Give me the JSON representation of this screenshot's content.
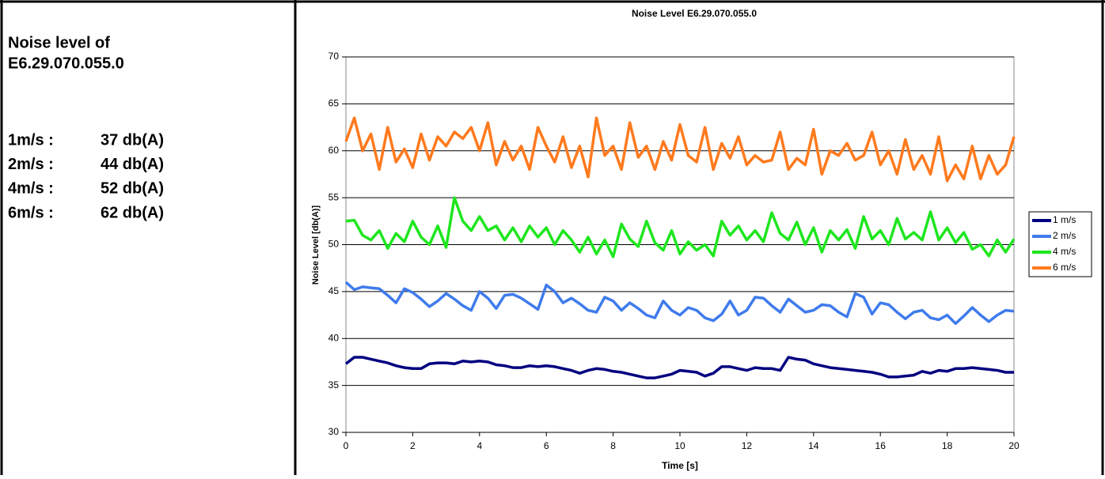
{
  "left_panel": {
    "title_lines": [
      "Noise level of",
      "E6.29.070.055.0"
    ],
    "rows": [
      {
        "speed": "1m/s :",
        "level": "37 db(A)"
      },
      {
        "speed": "2m/s :",
        "level": "44 db(A)"
      },
      {
        "speed": "4m/s :",
        "level": "52 db(A)"
      },
      {
        "speed": "6m/s :",
        "level": "62 db(A)"
      }
    ]
  },
  "chart_data": {
    "type": "line",
    "title": "Noise Level E6.29.070.055.0",
    "x_label": "Time [s]",
    "y_label": "Noise Level [db(A)]",
    "xlim": [
      0,
      20
    ],
    "xticks": [
      0,
      2,
      4,
      6,
      8,
      10,
      12,
      14,
      16,
      18,
      20
    ],
    "ylim": [
      30,
      70
    ],
    "yticks": [
      30,
      35,
      40,
      45,
      50,
      55,
      60,
      65,
      70
    ],
    "grid": true,
    "legend": "right",
    "x": [
      0,
      0.25,
      0.5,
      0.75,
      1,
      1.25,
      1.5,
      1.75,
      2,
      2.25,
      2.5,
      2.75,
      3,
      3.25,
      3.5,
      3.75,
      4,
      4.25,
      4.5,
      4.75,
      5,
      5.25,
      5.5,
      5.75,
      6,
      6.25,
      6.5,
      6.75,
      7,
      7.25,
      7.5,
      7.75,
      8,
      8.25,
      8.5,
      8.75,
      9,
      9.25,
      9.5,
      9.75,
      10,
      10.25,
      10.5,
      10.75,
      11,
      11.25,
      11.5,
      11.75,
      12,
      12.25,
      12.5,
      12.75,
      13,
      13.25,
      13.5,
      13.75,
      14,
      14.25,
      14.5,
      14.75,
      15,
      15.25,
      15.5,
      15.75,
      16,
      16.25,
      16.5,
      16.75,
      17,
      17.25,
      17.5,
      17.75,
      18,
      18.25,
      18.5,
      18.75,
      19,
      19.25,
      19.5,
      19.75,
      20
    ],
    "series": [
      {
        "name": "1 m/s",
        "color": "#000080",
        "values": [
          37.3,
          38.0,
          38.0,
          37.8,
          37.6,
          37.4,
          37.1,
          36.9,
          36.8,
          36.8,
          37.3,
          37.4,
          37.4,
          37.3,
          37.6,
          37.5,
          37.6,
          37.5,
          37.2,
          37.1,
          36.9,
          36.9,
          37.1,
          37.0,
          37.1,
          37.0,
          36.8,
          36.6,
          36.3,
          36.6,
          36.8,
          36.7,
          36.5,
          36.4,
          36.2,
          36.0,
          35.8,
          35.8,
          36.0,
          36.2,
          36.6,
          36.5,
          36.4,
          36.0,
          36.3,
          37.0,
          37.0,
          36.8,
          36.6,
          36.9,
          36.8,
          36.8,
          36.6,
          38.0,
          37.8,
          37.7,
          37.3,
          37.1,
          36.9,
          36.8,
          36.7,
          36.6,
          36.5,
          36.4,
          36.2,
          35.9,
          35.9,
          36.0,
          36.1,
          36.5,
          36.3,
          36.6,
          36.5,
          36.8,
          36.8,
          36.9,
          36.8,
          36.7,
          36.6,
          36.4,
          36.4
        ]
      },
      {
        "name": "2 m/s",
        "color": "#3f7bec",
        "values": [
          46.0,
          45.2,
          45.5,
          45.4,
          45.3,
          44.6,
          43.8,
          45.3,
          44.9,
          44.2,
          43.4,
          44.0,
          44.8,
          44.2,
          43.5,
          43.0,
          45.0,
          44.3,
          43.2,
          44.6,
          44.7,
          44.3,
          43.7,
          43.1,
          45.7,
          45.0,
          43.8,
          44.3,
          43.7,
          43.0,
          42.8,
          44.4,
          44.0,
          43.0,
          43.8,
          43.2,
          42.5,
          42.2,
          44.0,
          43.0,
          42.5,
          43.3,
          43.0,
          42.2,
          41.9,
          42.6,
          44.0,
          42.5,
          43.0,
          44.4,
          44.3,
          43.5,
          42.8,
          44.2,
          43.5,
          42.8,
          43.0,
          43.6,
          43.5,
          42.8,
          42.3,
          44.8,
          44.4,
          42.6,
          43.8,
          43.6,
          42.8,
          42.1,
          42.8,
          43.0,
          42.2,
          42.0,
          42.5,
          41.6,
          42.4,
          43.3,
          42.5,
          41.8,
          42.5,
          43.0,
          42.9
        ]
      },
      {
        "name": "4 m/s",
        "color": "#1ee61e",
        "values": [
          52.5,
          52.6,
          51.0,
          50.5,
          51.5,
          49.6,
          51.2,
          50.3,
          52.5,
          50.8,
          50.0,
          52.0,
          49.7,
          55.0,
          52.5,
          51.5,
          53.0,
          51.5,
          52.0,
          50.5,
          51.8,
          50.3,
          52.0,
          50.8,
          51.8,
          50.0,
          51.5,
          50.5,
          49.2,
          50.8,
          49.0,
          50.5,
          48.7,
          52.2,
          50.6,
          49.8,
          52.5,
          50.2,
          49.4,
          51.5,
          49.0,
          50.3,
          49.4,
          50.0,
          48.8,
          52.5,
          51.0,
          52.0,
          50.5,
          51.5,
          50.3,
          53.4,
          51.2,
          50.5,
          52.4,
          50.0,
          51.8,
          49.2,
          51.5,
          50.5,
          51.6,
          49.6,
          53.0,
          50.6,
          51.5,
          50.0,
          52.8,
          50.6,
          51.3,
          50.5,
          53.5,
          50.5,
          51.8,
          50.2,
          51.3,
          49.5,
          50.0,
          48.8,
          50.5,
          49.2,
          50.6
        ]
      },
      {
        "name": "6 m/s",
        "color": "#ff7a1e",
        "values": [
          61.0,
          63.5,
          60.0,
          61.8,
          58.0,
          62.5,
          58.8,
          60.2,
          58.2,
          61.8,
          59.0,
          61.5,
          60.5,
          62.0,
          61.3,
          62.5,
          60.0,
          63.0,
          58.5,
          61.0,
          59.0,
          60.5,
          58.0,
          62.5,
          60.5,
          58.8,
          61.5,
          58.2,
          60.5,
          57.2,
          63.5,
          59.5,
          60.5,
          58.0,
          63.0,
          59.3,
          60.5,
          58.0,
          61.0,
          59.0,
          62.8,
          59.5,
          58.8,
          62.5,
          58.0,
          60.8,
          59.2,
          61.5,
          58.5,
          59.5,
          58.8,
          59.0,
          62.0,
          58.0,
          59.2,
          58.5,
          62.3,
          57.5,
          60.0,
          59.5,
          60.8,
          59.0,
          59.5,
          62.0,
          58.5,
          60.0,
          57.5,
          61.2,
          58.0,
          59.5,
          57.5,
          61.5,
          56.8,
          58.5,
          57.0,
          60.5,
          57.0,
          59.5,
          57.5,
          58.5,
          61.5
        ]
      }
    ]
  }
}
